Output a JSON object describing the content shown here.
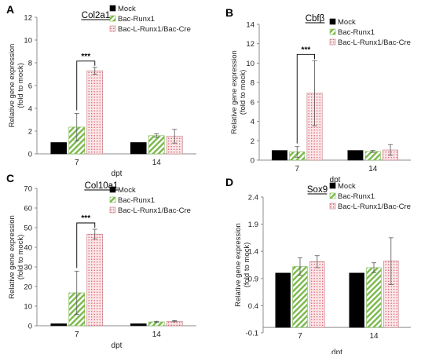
{
  "colors": {
    "mock": "#000000",
    "runx_stripe": "#7ab84a",
    "cre_dot": "#e05a6a",
    "cre_bg": "#fbe6e8",
    "axis": "#8c8c8c",
    "text": "#222222"
  },
  "patterns": {
    "Bac-Runx1": "diagonal-green-stripes",
    "Bac-L-Runx1/Bac-Cre": "pink-dots"
  },
  "chart_data": [
    {
      "panel": "A",
      "type": "bar",
      "title": "Col2a1",
      "ylabel_line1": "Relative gene expression",
      "ylabel_line2": "(fold to mock)",
      "xlabel": "dpt",
      "categories": [
        "7",
        "14"
      ],
      "ylim": [
        0,
        12
      ],
      "yticks": [
        "0",
        "2",
        "4",
        "6",
        "8",
        "10",
        "12"
      ],
      "series": [
        {
          "name": "Mock",
          "values": [
            1.0,
            1.0
          ],
          "errors": [
            0,
            0
          ]
        },
        {
          "name": "Bac-Runx1",
          "values": [
            2.35,
            1.6
          ],
          "errors": [
            1.2,
            0.15
          ]
        },
        {
          "name": "Bac-L-Runx1/Bac-Cre",
          "values": [
            7.3,
            1.55
          ],
          "errors": [
            0.3,
            0.6
          ]
        }
      ],
      "significance": {
        "label": "***",
        "category": "7"
      },
      "legend": "top-right"
    },
    {
      "panel": "B",
      "type": "bar",
      "title": "Cbfβ",
      "ylabel_line1": "Relative gene expression",
      "ylabel_line2": "(fold to mock)",
      "xlabel": "dpt",
      "categories": [
        "7",
        "14"
      ],
      "ylim": [
        0,
        14
      ],
      "yticks": [
        "0",
        "2",
        "4",
        "6",
        "8",
        "10",
        "12",
        "14"
      ],
      "series": [
        {
          "name": "Mock",
          "values": [
            1.0,
            1.0
          ],
          "errors": [
            0,
            0
          ]
        },
        {
          "name": "Bac-Runx1",
          "values": [
            0.85,
            0.9
          ],
          "errors": [
            0.55,
            0.1
          ]
        },
        {
          "name": "Bac-L-Runx1/Bac-Cre",
          "values": [
            6.9,
            1.05
          ],
          "errors": [
            3.35,
            0.55
          ]
        }
      ],
      "significance": {
        "label": "***",
        "category": "7"
      },
      "legend": "top-right"
    },
    {
      "panel": "C",
      "type": "bar",
      "title": "Col10a1",
      "ylabel_line1": "Relative gene expression",
      "ylabel_line2": "(fold to mock)",
      "xlabel": "dpt",
      "categories": [
        "7",
        "14"
      ],
      "ylim": [
        0,
        70
      ],
      "yticks": [
        "0",
        "10",
        "20",
        "30",
        "40",
        "50",
        "60",
        "70"
      ],
      "series": [
        {
          "name": "Mock",
          "values": [
            1.0,
            1.0
          ],
          "errors": [
            0,
            0
          ]
        },
        {
          "name": "Bac-Runx1",
          "values": [
            16.8,
            2.0
          ],
          "errors": [
            11.0,
            0.3
          ]
        },
        {
          "name": "Bac-L-Runx1/Bac-Cre",
          "values": [
            46.7,
            2.3
          ],
          "errors": [
            2.5,
            0.3
          ]
        }
      ],
      "significance": {
        "label": "***",
        "category": "7"
      },
      "legend": "top-right"
    },
    {
      "panel": "D",
      "type": "bar",
      "title": "Sox9",
      "ylabel_line1": "Relative gene expression",
      "ylabel_line2": "(fold to mock)",
      "xlabel": "dpt",
      "categories": [
        "7",
        "14"
      ],
      "ylim": [
        -0.1,
        2.4
      ],
      "yticks": [
        "-0.1",
        "0.4",
        "0.9",
        "1.4",
        "1.9",
        "2.4"
      ],
      "series": [
        {
          "name": "Mock",
          "values": [
            1.0,
            1.0
          ],
          "errors": [
            0,
            0
          ]
        },
        {
          "name": "Bac-Runx1",
          "values": [
            1.12,
            1.1
          ],
          "errors": [
            0.16,
            0.09
          ]
        },
        {
          "name": "Bac-L-Runx1/Bac-Cre",
          "values": [
            1.21,
            1.22
          ],
          "errors": [
            0.11,
            0.43
          ]
        }
      ],
      "significance": null,
      "legend": "top-right"
    }
  ]
}
